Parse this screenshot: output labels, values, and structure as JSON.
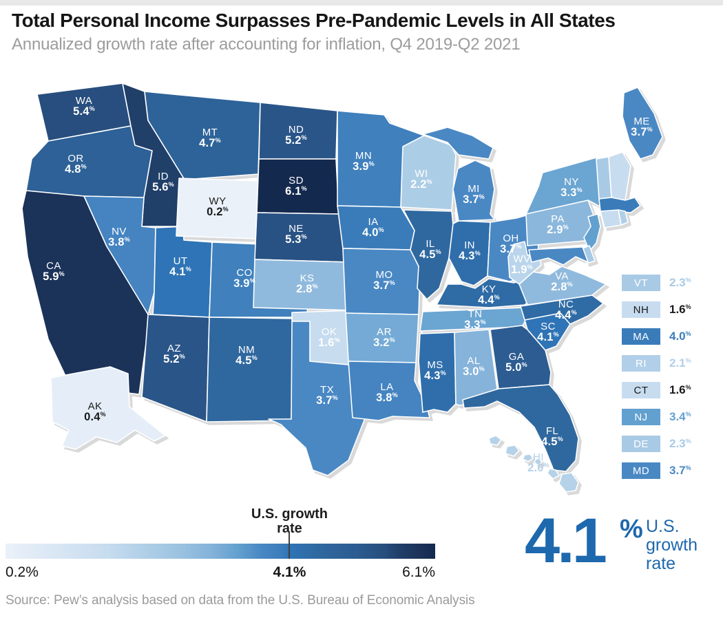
{
  "header": {
    "title": "Total Personal Income Surpasses Pre-Pandemic Levels in All States",
    "subtitle": "Annualized growth rate after accounting for inflation, Q4 2019-Q2 2021"
  },
  "source_note": "Source: Pew’s analysis based on data from the U.S. Bureau of Economic Analysis",
  "callout": {
    "value": "4.1",
    "unit": "%",
    "caption": "U.S. growth rate",
    "color": "#1E68AD"
  },
  "colorbar": {
    "min_label": "0.2%",
    "mid_label": "4.1%",
    "max_label": "6.1%",
    "marker_title": "U.S. growth rate",
    "tick_color": "#3f3f3f"
  },
  "colors": {
    "accent_blue": "#1E68AD",
    "title": "#161616",
    "subtitle_gray": "#9c9c9c",
    "shadow_gray": "#d9d9d9",
    "dark_label": "#1a1a1a"
  },
  "chart_data": {
    "type": "heatmap",
    "subtype": "us-state-choropleth",
    "title": "Total Personal Income Surpasses Pre-Pandemic Levels in All States",
    "subtitle": "Annualized growth rate after accounting for inflation, Q4 2019-Q2 2021",
    "unit": "%",
    "value_range": [
      0.2,
      6.1
    ],
    "us_growth_rate": 4.1,
    "legend_position": "right-column-for-small-states",
    "color_scale": {
      "stops": [
        [
          0.2,
          "#EAF1F9"
        ],
        [
          1.6,
          "#C7DCEF"
        ],
        [
          2.0,
          "#B5D2E9"
        ],
        [
          2.5,
          "#9FC5E2"
        ],
        [
          3.0,
          "#86B3DA"
        ],
        [
          3.4,
          "#62A0CF"
        ],
        [
          3.7,
          "#4A88C4"
        ],
        [
          4.0,
          "#3A7CBA"
        ],
        [
          4.1,
          "#2E74B6"
        ],
        [
          4.5,
          "#2F689F"
        ],
        [
          5.0,
          "#2C5C91"
        ],
        [
          5.4,
          "#274E7E"
        ],
        [
          5.6,
          "#203F69"
        ],
        [
          5.9,
          "#1B3259"
        ],
        [
          6.1,
          "#14294E"
        ]
      ]
    },
    "map_states": [
      {
        "code": "WA",
        "value": 5.4
      },
      {
        "code": "OR",
        "value": 4.8
      },
      {
        "code": "CA",
        "value": 5.9
      },
      {
        "code": "ID",
        "value": 5.6
      },
      {
        "code": "NV",
        "value": 3.8
      },
      {
        "code": "UT",
        "value": 4.1
      },
      {
        "code": "AZ",
        "value": 5.2
      },
      {
        "code": "MT",
        "value": 4.7
      },
      {
        "code": "WY",
        "value": 0.2,
        "label_style": "dark"
      },
      {
        "code": "CO",
        "value": 3.9
      },
      {
        "code": "NM",
        "value": 4.5
      },
      {
        "code": "ND",
        "value": 5.2
      },
      {
        "code": "SD",
        "value": 6.1
      },
      {
        "code": "NE",
        "value": 5.3
      },
      {
        "code": "KS",
        "value": 2.8
      },
      {
        "code": "OK",
        "value": 1.6
      },
      {
        "code": "TX",
        "value": 3.7
      },
      {
        "code": "MN",
        "value": 3.9
      },
      {
        "code": "IA",
        "value": 4.0
      },
      {
        "code": "MO",
        "value": 3.7
      },
      {
        "code": "AR",
        "value": 3.2
      },
      {
        "code": "LA",
        "value": 3.8
      },
      {
        "code": "WI",
        "value": 2.2
      },
      {
        "code": "IL",
        "value": 4.5
      },
      {
        "code": "IN",
        "value": 4.3
      },
      {
        "code": "MI",
        "value": 3.7
      },
      {
        "code": "OH",
        "value": 3.7
      },
      {
        "code": "KY",
        "value": 4.4
      },
      {
        "code": "TN",
        "value": 3.3
      },
      {
        "code": "MS",
        "value": 4.3
      },
      {
        "code": "AL",
        "value": 3.0
      },
      {
        "code": "GA",
        "value": 5.0
      },
      {
        "code": "FL",
        "value": 4.5
      },
      {
        "code": "SC",
        "value": 4.1
      },
      {
        "code": "NC",
        "value": 4.4
      },
      {
        "code": "VA",
        "value": 2.8
      },
      {
        "code": "WV",
        "value": 1.9
      },
      {
        "code": "PA",
        "value": 2.9
      },
      {
        "code": "NY",
        "value": 3.3
      },
      {
        "code": "ME",
        "value": 3.7
      },
      {
        "code": "AK",
        "value": 0.4,
        "label_style": "dark"
      },
      {
        "code": "HI",
        "value": 2.0,
        "label_style": "tint"
      }
    ],
    "legend_states": [
      {
        "code": "VT",
        "value": 2.3
      },
      {
        "code": "NH",
        "value": 1.6,
        "label_style": "dark"
      },
      {
        "code": "MA",
        "value": 4.0
      },
      {
        "code": "RI",
        "value": 2.1
      },
      {
        "code": "CT",
        "value": 1.6,
        "label_style": "dark"
      },
      {
        "code": "NJ",
        "value": 3.4
      },
      {
        "code": "DE",
        "value": 2.3
      },
      {
        "code": "MD",
        "value": 3.7
      }
    ]
  }
}
